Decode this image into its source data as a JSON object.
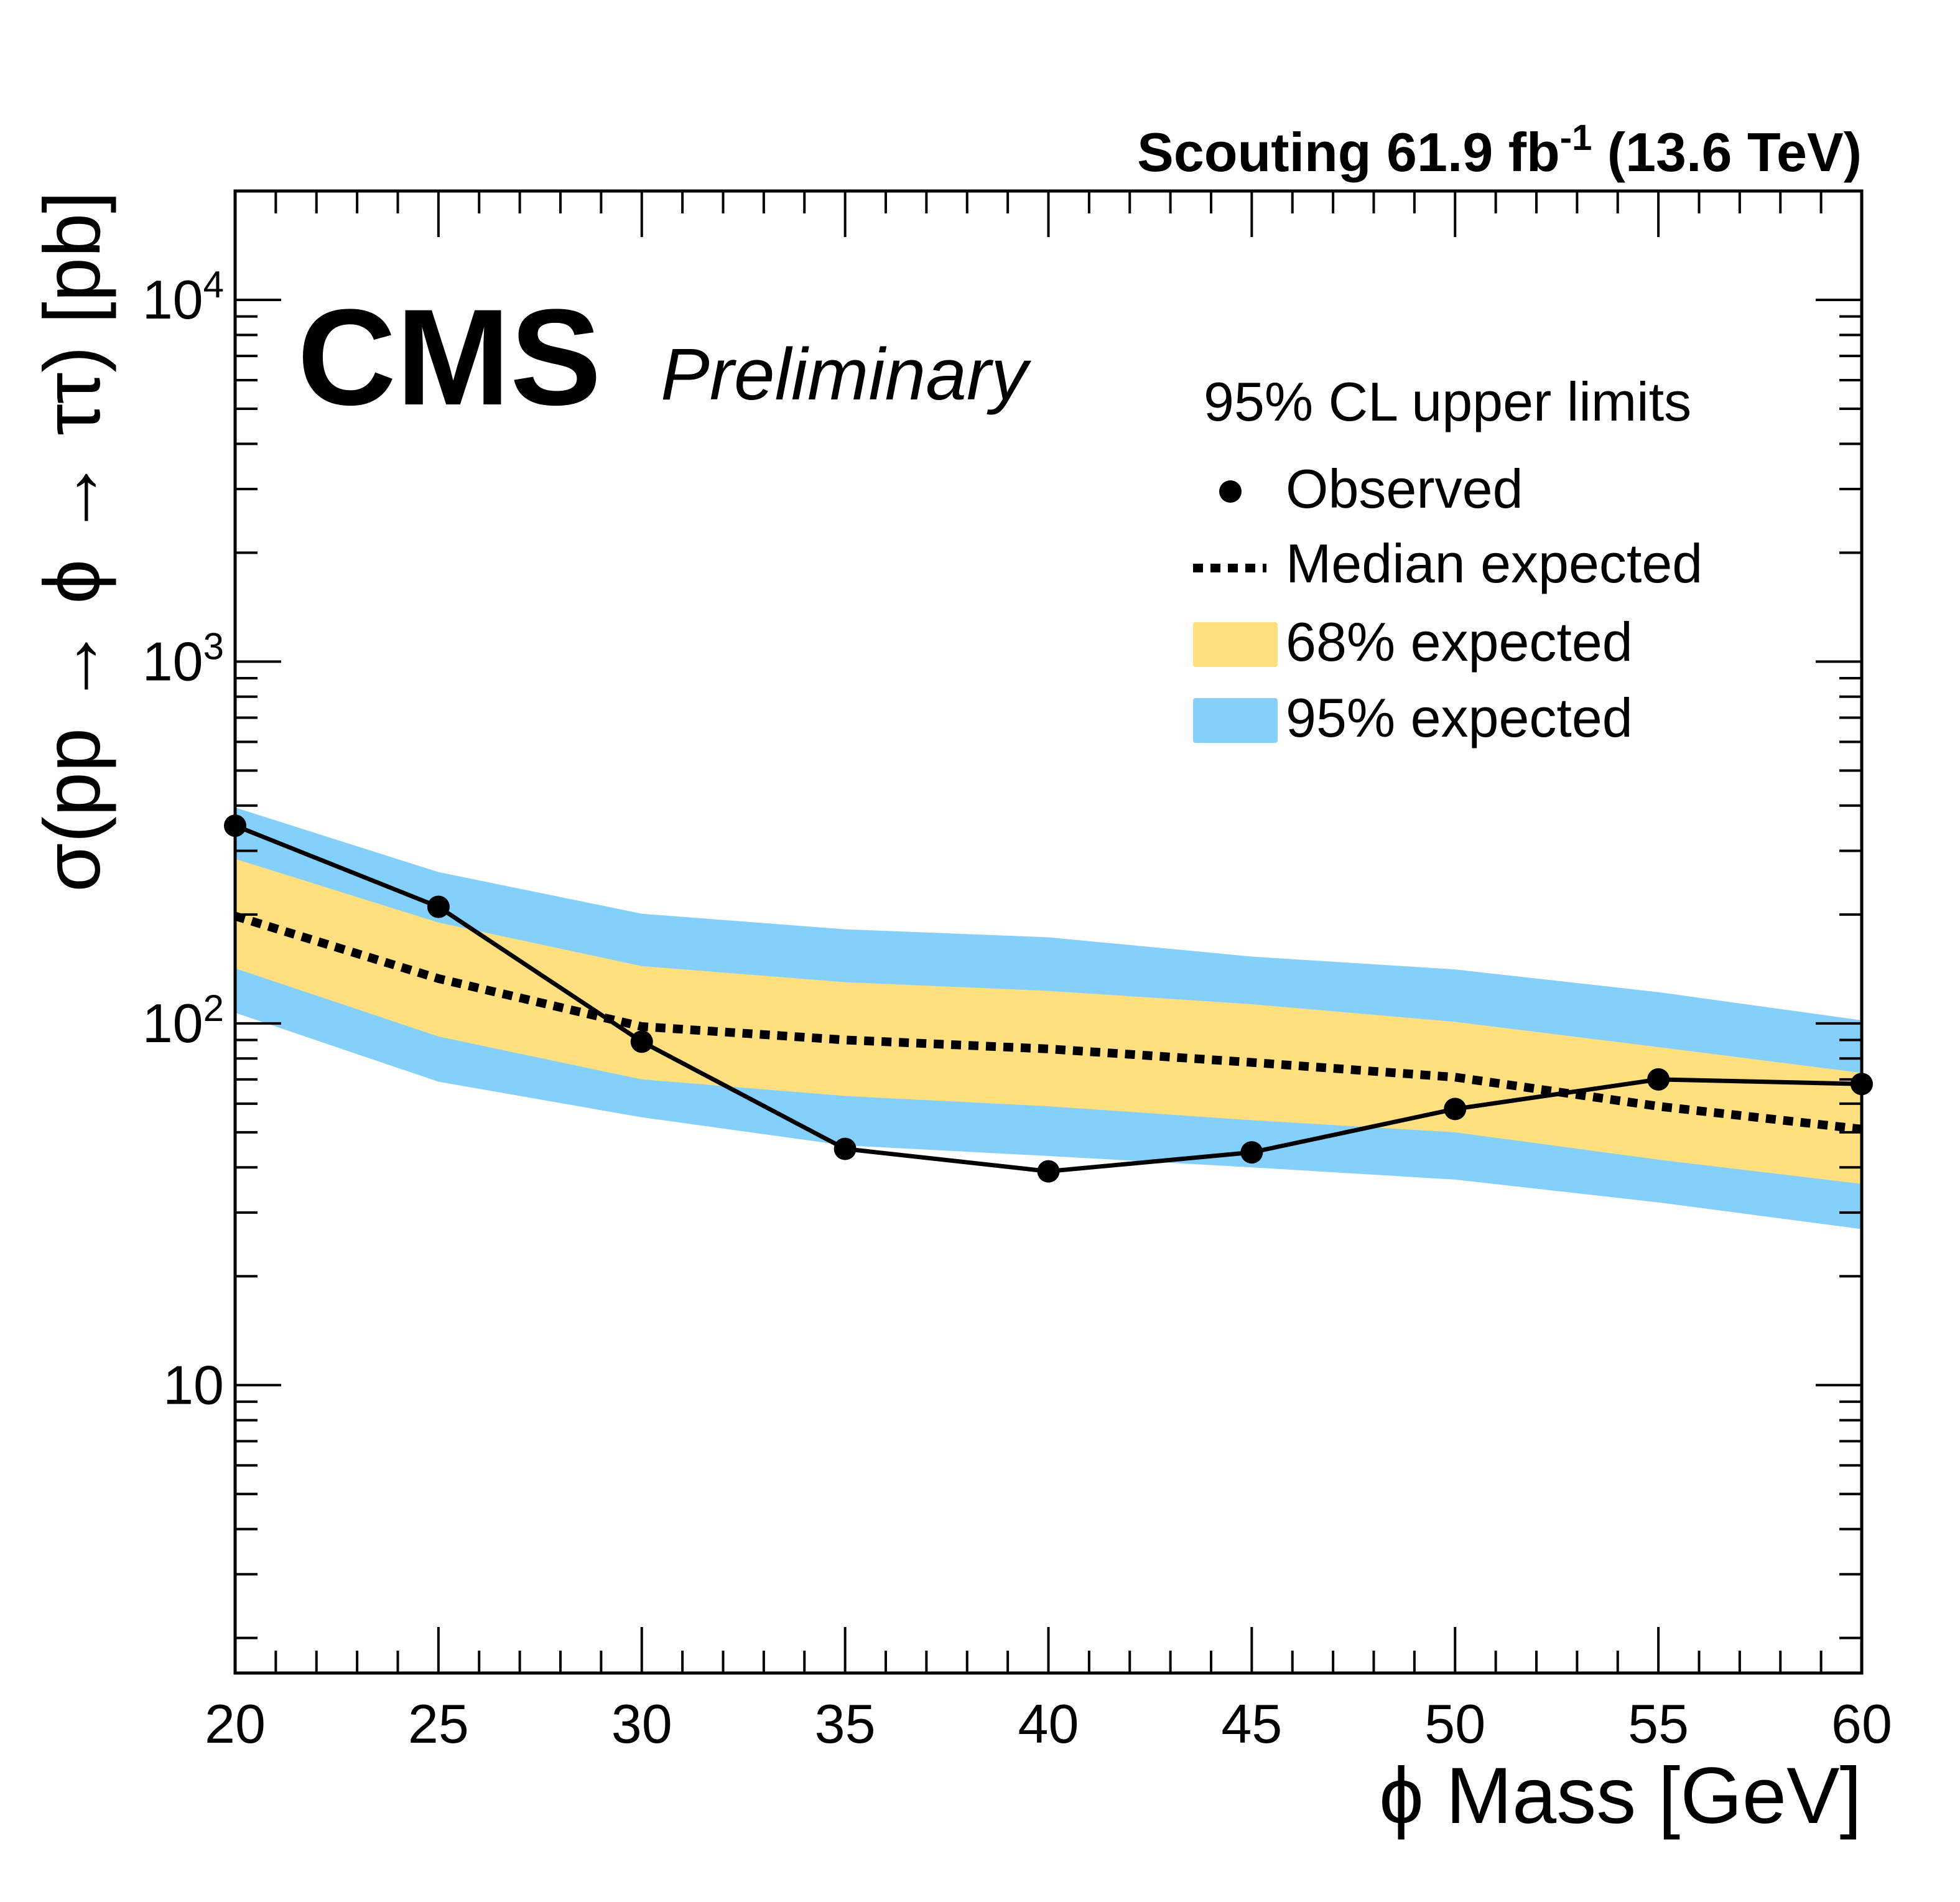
{
  "header": {
    "lumi_prefix": "Scouting 61.9 fb",
    "lumi_sup": "-1",
    "lumi_suffix": " (13.6 TeV)",
    "experiment": "CMS",
    "status": "Preliminary"
  },
  "legend": {
    "title": "95% CL upper limits",
    "observed": "Observed",
    "median": "Median expected",
    "band68": "68% expected",
    "band95": "95% expected"
  },
  "colors": {
    "band68": "#FFDF7F",
    "band95": "#85D0FA",
    "line": "#000000"
  },
  "chart_data": {
    "type": "line",
    "title": "",
    "xlabel": "ϕ Mass [GeV]",
    "ylabel": "σ(pp → ϕ → ττ) [pb]",
    "xlim": [
      20,
      60
    ],
    "ylim": [
      1.6,
      20000
    ],
    "yscale": "log",
    "grid": false,
    "legend_position": "top-right",
    "x_ticks": [
      "20",
      "25",
      "30",
      "35",
      "40",
      "45",
      "50",
      "55",
      "60"
    ],
    "y_ticks": [
      {
        "value": 10,
        "label": "10",
        "exp": ""
      },
      {
        "value": 100,
        "label": "10",
        "exp": "2"
      },
      {
        "value": 1000,
        "label": "10",
        "exp": "3"
      },
      {
        "value": 10000,
        "label": "10",
        "exp": "4"
      }
    ],
    "x": [
      20,
      25,
      30,
      35,
      40,
      45,
      50,
      55,
      60
    ],
    "series": [
      {
        "name": "Observed",
        "style": "solid-with-markers",
        "values": [
          352,
          210,
          89,
          45,
          39,
          44,
          58,
          70,
          68
        ]
      },
      {
        "name": "Median expected",
        "style": "dotted",
        "values": [
          198,
          133,
          98,
          90,
          85,
          78,
          71,
          59,
          51
        ]
      },
      {
        "name": "68% expected (upper)",
        "values": [
          285,
          190,
          144,
          130,
          123,
          113,
          101,
          86,
          73
        ]
      },
      {
        "name": "68% expected (lower)",
        "values": [
          142,
          92,
          70,
          63,
          59,
          54,
          50,
          42,
          36
        ]
      },
      {
        "name": "95% expected (upper)",
        "values": [
          395,
          262,
          201,
          182,
          173,
          153,
          141,
          122,
          102
        ]
      },
      {
        "name": "95% expected (lower)",
        "values": [
          107,
          69,
          55,
          46,
          43,
          40,
          37,
          32,
          27
        ]
      }
    ]
  }
}
